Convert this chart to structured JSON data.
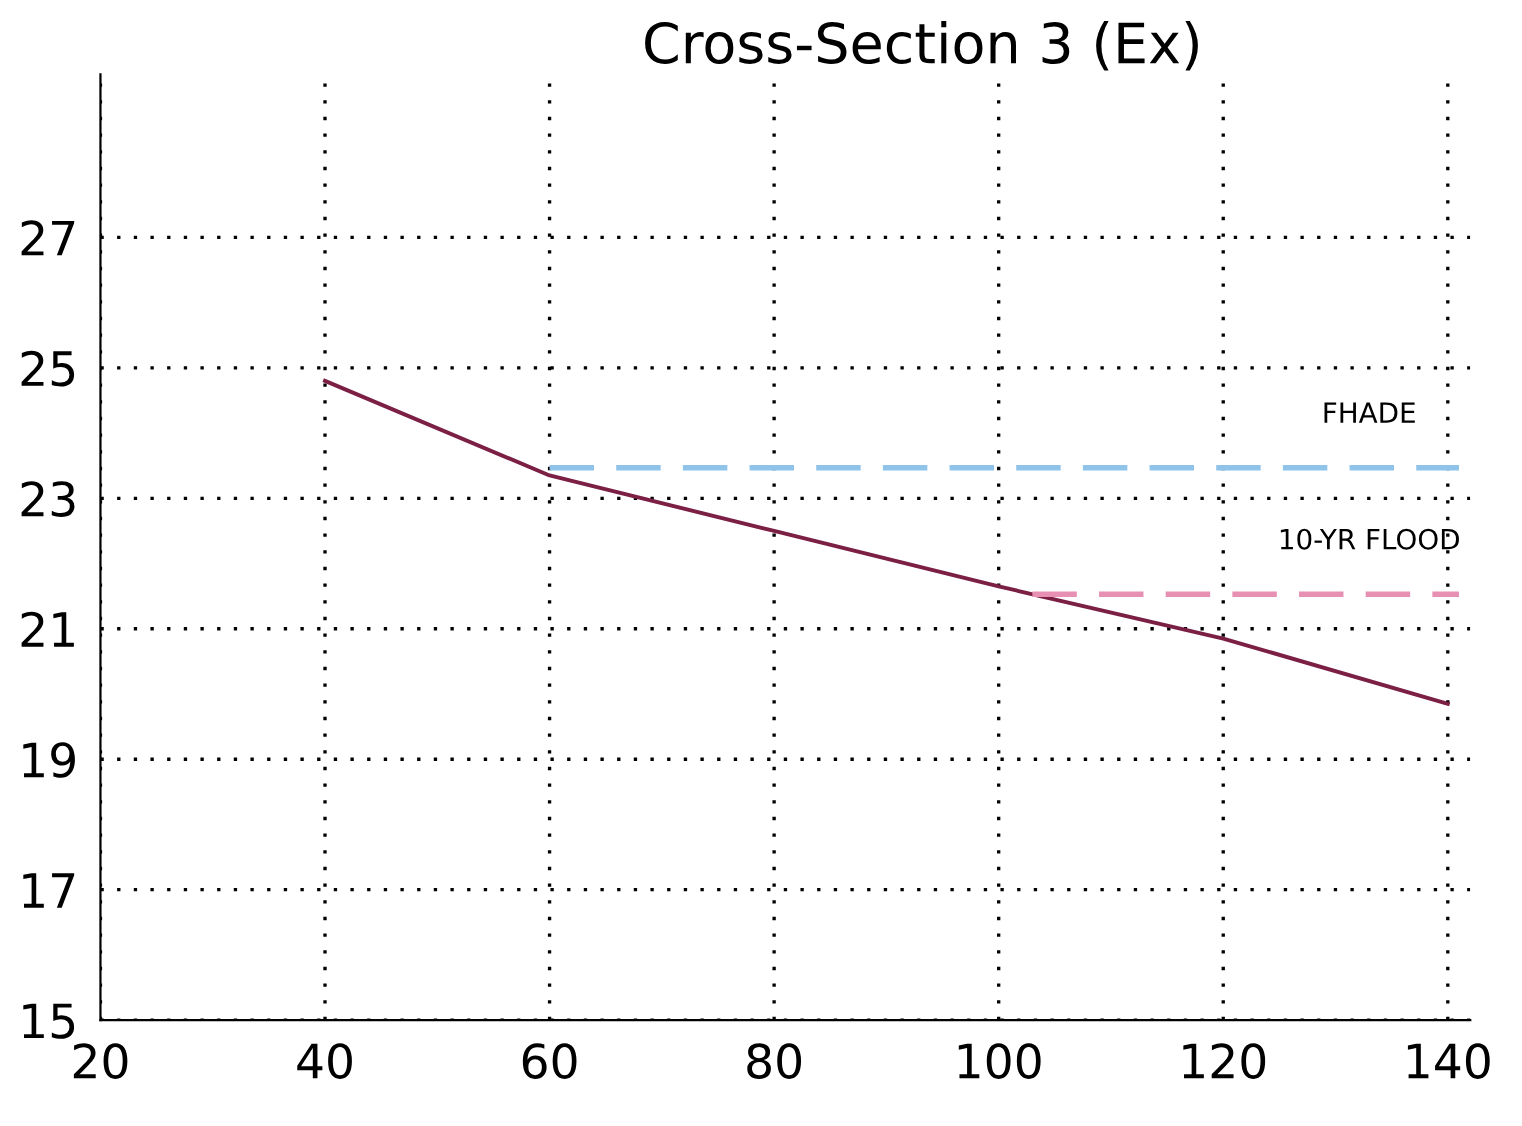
{
  "chart_data": {
    "type": "line",
    "title": "Cross-Section 3 (Ex)",
    "xlim": [
      20,
      142
    ],
    "ylim": [
      15,
      29.5
    ],
    "xticks": [
      20,
      40,
      60,
      80,
      100,
      120,
      140
    ],
    "yticks": [
      15,
      17,
      19,
      21,
      23,
      25,
      27
    ],
    "grid": true,
    "line_style": "solid",
    "marker": "none",
    "series": [
      {
        "color": "#7b1f45",
        "x": [
          40,
          60,
          80,
          100,
          120,
          140
        ],
        "values": [
          24.8,
          23.35,
          22.5,
          21.65,
          20.85,
          19.85
        ]
      },
      {
        "name": "FHADE",
        "color": "#8fc3ea",
        "line_style": "dashed",
        "x": [
          60,
          141
        ],
        "values": [
          23.47,
          23.47
        ]
      },
      {
        "name": "10-YR FLOOD",
        "color": "#e88fb4",
        "line_style": "dashed",
        "x": [
          103,
          141
        ],
        "values": [
          21.53,
          21.53
        ]
      }
    ]
  }
}
